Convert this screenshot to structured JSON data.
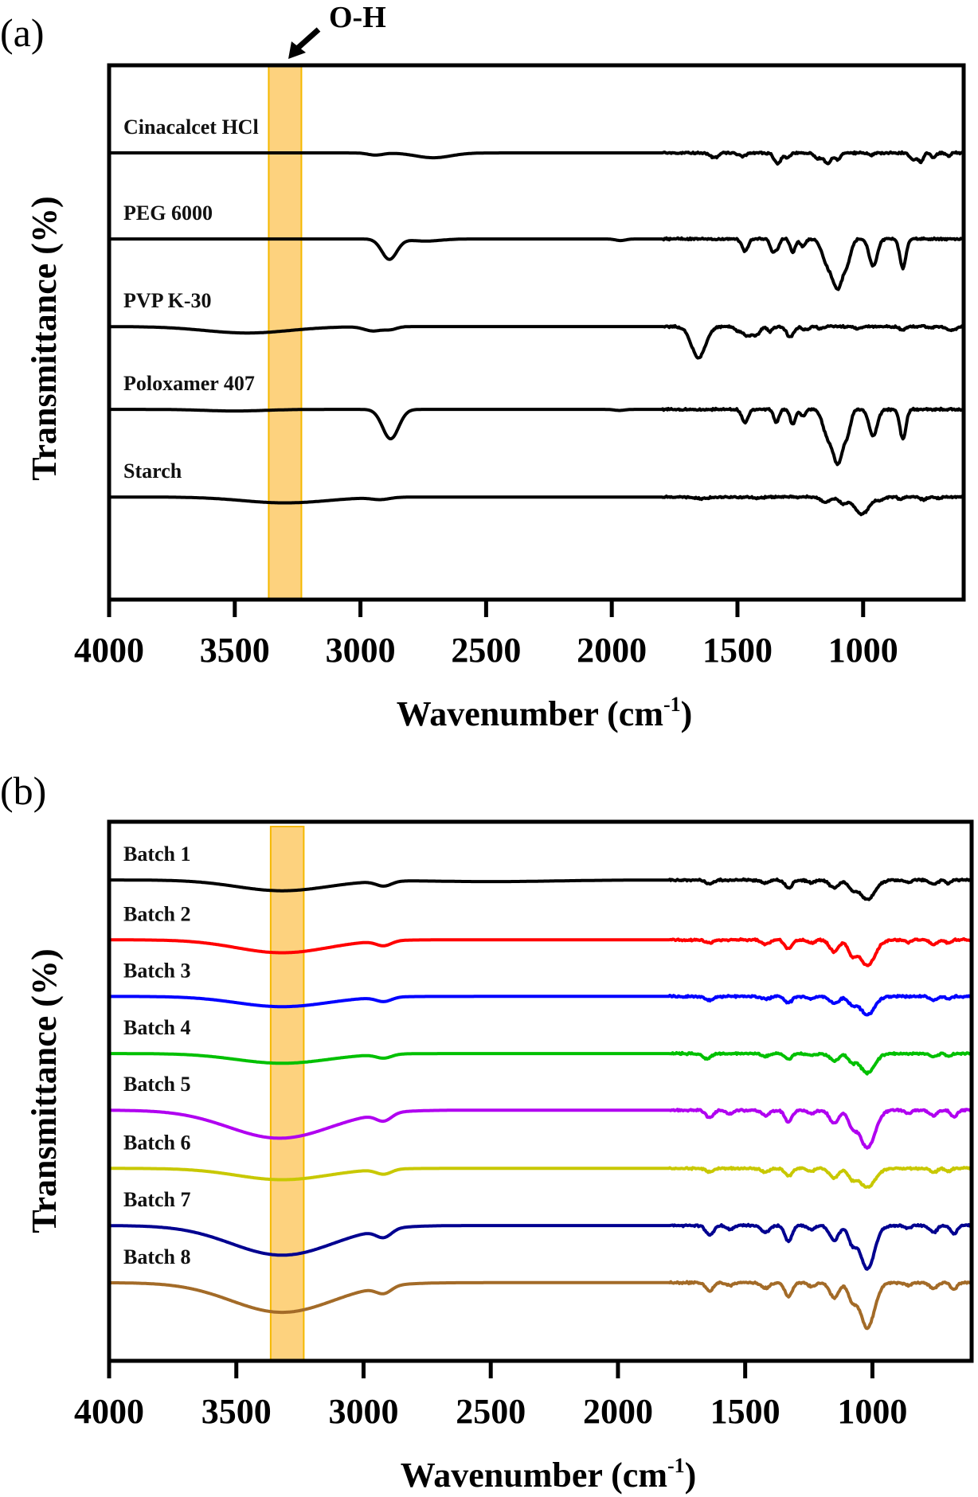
{
  "chart_data": [
    {
      "type": "line",
      "panel_label": "(a)",
      "title": "",
      "xlabel": "Wavenumber (cm-1)",
      "xlabel_main": "Wavenumber (cm",
      "xlabel_sup": "-1",
      "xlabel_close": ")",
      "ylabel": "Transmittance (%)",
      "xlim": [
        4000,
        600
      ],
      "ylim": [
        0,
        100
      ],
      "x_reversed": true,
      "xticks": [
        4000,
        3500,
        3000,
        2500,
        2000,
        1500,
        1000
      ],
      "xtick_labels": [
        "4000",
        "3500",
        "3000",
        "2500",
        "2000",
        "1500",
        "1000"
      ],
      "yticks_shown": false,
      "grid": false,
      "legend": "inline-labels-left",
      "highlight_band": {
        "from": 3365,
        "to": 3235,
        "color": "#fdd27e",
        "edge_color": "#f5b800",
        "label": "O-H"
      },
      "annotation": {
        "text": "O-H",
        "arrow": true,
        "target": "highlight_band"
      },
      "series": [
        {
          "name": "Cinacalcet HCl",
          "color": "#000000",
          "offset": 83.6,
          "bands": [
            [
              2710,
              0.9,
              70
            ],
            [
              2940,
              0.4,
              30
            ],
            [
              1600,
              0.7,
              12
            ],
            [
              1580,
              0.5,
              10
            ],
            [
              1480,
              0.6,
              14
            ],
            [
              1340,
              2.0,
              14
            ],
            [
              1300,
              0.8,
              10
            ],
            [
              1180,
              1.0,
              14
            ],
            [
              1140,
              2.0,
              14
            ],
            [
              1100,
              1.2,
              10
            ],
            [
              970,
              0.4,
              10
            ],
            [
              800,
              1.4,
              12
            ],
            [
              770,
              1.6,
              10
            ],
            [
              720,
              0.9,
              8
            ],
            [
              660,
              0.6,
              8
            ]
          ]
        },
        {
          "name": "PEG 6000",
          "color": "#000000",
          "offset": 67.5,
          "bands": [
            [
              2885,
              3.8,
              30
            ],
            [
              2740,
              0.4,
              60
            ],
            [
              1965,
              0.3,
              20
            ],
            [
              1470,
              2.3,
              12
            ],
            [
              1360,
              2.4,
              10
            ],
            [
              1340,
              1.6,
              8
            ],
            [
              1280,
              2.5,
              10
            ],
            [
              1240,
              1.4,
              10
            ],
            [
              1145,
              4.0,
              20
            ],
            [
              1100,
              9.0,
              22
            ],
            [
              1060,
              3.0,
              14
            ],
            [
              960,
              5.0,
              16
            ],
            [
              842,
              5.5,
              12
            ]
          ]
        },
        {
          "name": "PVP K-30",
          "color": "#000000",
          "offset": 51.1,
          "bands": [
            [
              3450,
              1.2,
              170
            ],
            [
              2950,
              0.8,
              35
            ],
            [
              2880,
              0.5,
              25
            ],
            [
              1655,
              5.8,
              28
            ],
            [
              1495,
              0.9,
              12
            ],
            [
              1460,
              1.8,
              14
            ],
            [
              1425,
              1.6,
              14
            ],
            [
              1370,
              0.9,
              10
            ],
            [
              1290,
              2.0,
              14
            ],
            [
              1230,
              0.6,
              12
            ],
            [
              1170,
              0.4,
              10
            ],
            [
              1020,
              0.4,
              12
            ],
            [
              845,
              0.6,
              12
            ],
            [
              735,
              0.3,
              10
            ],
            [
              650,
              0.7,
              18
            ]
          ]
        },
        {
          "name": "Poloxamer 407",
          "color": "#000000",
          "offset": 35.6,
          "bands": [
            [
              2880,
              5.5,
              32
            ],
            [
              3500,
              0.3,
              120
            ],
            [
              1970,
              0.2,
              20
            ],
            [
              1470,
              2.5,
              12
            ],
            [
              1345,
              2.4,
              10
            ],
            [
              1280,
              2.8,
              10
            ],
            [
              1240,
              1.3,
              10
            ],
            [
              1145,
              4.0,
              18
            ],
            [
              1100,
              10.0,
              22
            ],
            [
              1060,
              3.0,
              12
            ],
            [
              960,
              5.0,
              16
            ],
            [
              842,
              5.5,
              12
            ]
          ]
        },
        {
          "name": "Starch",
          "color": "#000000",
          "offset": 19.2,
          "bands": [
            [
              3300,
              1.1,
              170
            ],
            [
              2920,
              0.4,
              35
            ],
            [
              1640,
              0.3,
              25
            ],
            [
              1420,
              0.2,
              20
            ],
            [
              1150,
              1.0,
              18
            ],
            [
              1080,
              1.2,
              16
            ],
            [
              1005,
              3.2,
              28
            ],
            [
              930,
              0.6,
              12
            ],
            [
              850,
              0.4,
              10
            ],
            [
              760,
              0.5,
              12
            ],
            [
              700,
              0.3,
              10
            ]
          ]
        }
      ]
    },
    {
      "type": "line",
      "panel_label": "(b)",
      "title": "",
      "xlabel": "Wavenumber (cm-1)",
      "xlabel_main": "Wavenumber (cm",
      "xlabel_sup": "-1",
      "xlabel_close": ")",
      "ylabel": "Transmittance (%)",
      "xlim": [
        4000,
        610
      ],
      "ylim": [
        0,
        100
      ],
      "x_reversed": true,
      "xticks": [
        4000,
        3500,
        3000,
        2500,
        2000,
        1500,
        1000
      ],
      "xtick_labels": [
        "4000",
        "3500",
        "3000",
        "2500",
        "2000",
        "1500",
        "1000"
      ],
      "yticks_shown": false,
      "grid": false,
      "legend": "inline-labels-left",
      "highlight_band": {
        "from": 3365,
        "to": 3235,
        "color": "#fdd27e",
        "edge_color": "#f5b800",
        "label": ""
      },
      "series": [
        {
          "name": "Batch 1",
          "color": "#000000",
          "offset": 89.2,
          "bands": [
            [
              3320,
              2.0,
              180
            ],
            [
              2920,
              0.9,
              30
            ],
            [
              2500,
              0.3,
              250
            ],
            [
              1640,
              0.7,
              15
            ],
            [
              1420,
              0.6,
              16
            ],
            [
              1330,
              1.5,
              14
            ],
            [
              1240,
              0.5,
              14
            ],
            [
              1150,
              1.5,
              18
            ],
            [
              1080,
              1.5,
              16
            ],
            [
              1020,
              3.6,
              30
            ],
            [
              860,
              0.5,
              12
            ],
            [
              760,
              0.8,
              14
            ],
            [
              700,
              0.6,
              10
            ]
          ]
        },
        {
          "name": "Batch 2",
          "color": "#ff0000",
          "offset": 78.1,
          "bands": [
            [
              3320,
              2.4,
              180
            ],
            [
              2920,
              0.9,
              30
            ],
            [
              1640,
              0.6,
              15
            ],
            [
              1420,
              0.8,
              16
            ],
            [
              1330,
              1.7,
              14
            ],
            [
              1240,
              0.6,
              14
            ],
            [
              1150,
              2.2,
              18
            ],
            [
              1080,
              2.5,
              16
            ],
            [
              1020,
              4.8,
              30
            ],
            [
              860,
              0.5,
              12
            ],
            [
              760,
              0.9,
              14
            ],
            [
              700,
              0.7,
              10
            ]
          ]
        },
        {
          "name": "Batch 3",
          "color": "#0000ff",
          "offset": 67.6,
          "bands": [
            [
              3320,
              1.9,
              180
            ],
            [
              2920,
              0.8,
              30
            ],
            [
              1640,
              0.7,
              15
            ],
            [
              1420,
              0.5,
              16
            ],
            [
              1330,
              1.2,
              14
            ],
            [
              1240,
              0.4,
              14
            ],
            [
              1150,
              1.3,
              18
            ],
            [
              1080,
              1.4,
              16
            ],
            [
              1020,
              3.4,
              28
            ],
            [
              760,
              0.7,
              14
            ],
            [
              700,
              0.5,
              10
            ]
          ]
        },
        {
          "name": "Batch 4",
          "color": "#00c000",
          "offset": 57.0,
          "bands": [
            [
              3320,
              1.8,
              180
            ],
            [
              2920,
              0.7,
              30
            ],
            [
              1650,
              1.0,
              15
            ],
            [
              1420,
              0.5,
              16
            ],
            [
              1330,
              1.0,
              14
            ],
            [
              1240,
              0.4,
              14
            ],
            [
              1150,
              1.3,
              18
            ],
            [
              1080,
              1.4,
              16
            ],
            [
              1020,
              3.6,
              28
            ],
            [
              760,
              0.6,
              14
            ],
            [
              700,
              0.5,
              10
            ]
          ]
        },
        {
          "name": "Batch 5",
          "color": "#b000f0",
          "offset": 46.5,
          "bands": [
            [
              3330,
              5.2,
              200
            ],
            [
              2920,
              1.4,
              30
            ],
            [
              1640,
              1.4,
              15
            ],
            [
              1560,
              0.6,
              14
            ],
            [
              1420,
              1.0,
              16
            ],
            [
              1330,
              2.2,
              14
            ],
            [
              1240,
              0.6,
              14
            ],
            [
              1150,
              2.4,
              18
            ],
            [
              1080,
              2.6,
              16
            ],
            [
              1020,
              7.0,
              30
            ],
            [
              860,
              0.6,
              12
            ],
            [
              760,
              1.0,
              14
            ],
            [
              680,
              1.3,
              12
            ]
          ]
        },
        {
          "name": "Batch 6",
          "color": "#c8c800",
          "offset": 35.7,
          "bands": [
            [
              3320,
              2.1,
              180
            ],
            [
              2920,
              0.9,
              30
            ],
            [
              1640,
              0.6,
              15
            ],
            [
              1420,
              0.7,
              16
            ],
            [
              1330,
              1.4,
              14
            ],
            [
              1240,
              0.5,
              14
            ],
            [
              1150,
              1.7,
              18
            ],
            [
              1080,
              1.8,
              16
            ],
            [
              1020,
              3.6,
              30
            ],
            [
              760,
              0.7,
              14
            ],
            [
              700,
              0.6,
              10
            ]
          ]
        },
        {
          "name": "Batch 7",
          "color": "#000090",
          "offset": 25.1,
          "bands": [
            [
              3320,
              5.5,
              200
            ],
            [
              2920,
              1.5,
              30
            ],
            [
              1640,
              1.8,
              15
            ],
            [
              1560,
              0.7,
              14
            ],
            [
              1420,
              1.2,
              16
            ],
            [
              1330,
              3.0,
              14
            ],
            [
              1240,
              0.8,
              14
            ],
            [
              1150,
              2.8,
              18
            ],
            [
              1080,
              3.0,
              16
            ],
            [
              1020,
              8.0,
              28
            ],
            [
              860,
              0.5,
              12
            ],
            [
              760,
              1.3,
              14
            ],
            [
              680,
              1.6,
              12
            ]
          ]
        },
        {
          "name": "Batch 8",
          "color": "#a36b28",
          "offset": 14.5,
          "bands": [
            [
              3320,
              5.5,
              200
            ],
            [
              2920,
              1.3,
              30
            ],
            [
              1640,
              1.5,
              15
            ],
            [
              1560,
              0.5,
              14
            ],
            [
              1420,
              1.0,
              16
            ],
            [
              1330,
              2.6,
              14
            ],
            [
              1240,
              0.7,
              14
            ],
            [
              1150,
              2.8,
              18
            ],
            [
              1080,
              3.0,
              16
            ],
            [
              1020,
              8.4,
              28
            ],
            [
              860,
              0.5,
              12
            ],
            [
              760,
              1.1,
              14
            ],
            [
              680,
              1.3,
              12
            ]
          ]
        }
      ]
    }
  ]
}
